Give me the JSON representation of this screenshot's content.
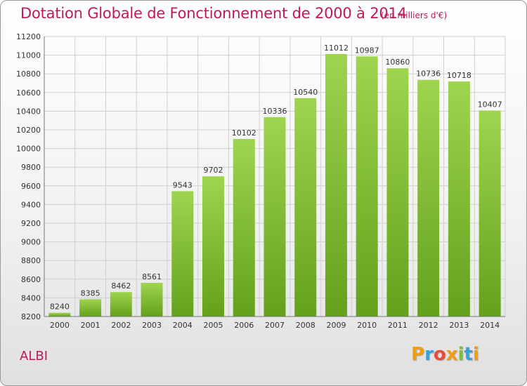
{
  "header": {
    "title": "Dotation Globale de Fonctionnement de 2000 à 2014",
    "unit": "(en milliers d'€)"
  },
  "footer": {
    "place": "ALBI",
    "logo_text": "Proxiti"
  },
  "colors": {
    "title": "#c2185b",
    "bar_light": "#9fd44f",
    "bar_dark": "#63a11d",
    "grid": "#cfcfcf",
    "logo": [
      "#f39c12",
      "#3aa0d8",
      "#e74c3c",
      "#f39c12",
      "#7cbf3a",
      "#3aa0d8",
      "#f39c12"
    ]
  },
  "chart_data": {
    "type": "bar",
    "title": "Dotation Globale de Fonctionnement de 2000 à 2014",
    "subtitle": "(en milliers d'€)",
    "categories": [
      "2000",
      "2001",
      "2002",
      "2003",
      "2004",
      "2005",
      "2006",
      "2007",
      "2008",
      "2009",
      "2010",
      "2011",
      "2012",
      "2013",
      "2014"
    ],
    "values": [
      8240,
      8385,
      8462,
      8561,
      9543,
      9702,
      10102,
      10336,
      10540,
      11012,
      10987,
      10860,
      10736,
      10718,
      10407
    ],
    "ylim": [
      8200,
      11200
    ],
    "yticks": [
      8200,
      8400,
      8600,
      8800,
      9000,
      9200,
      9400,
      9600,
      9800,
      10000,
      10200,
      10400,
      10600,
      10800,
      11000,
      11200
    ],
    "grid": true,
    "data_labels": true
  }
}
